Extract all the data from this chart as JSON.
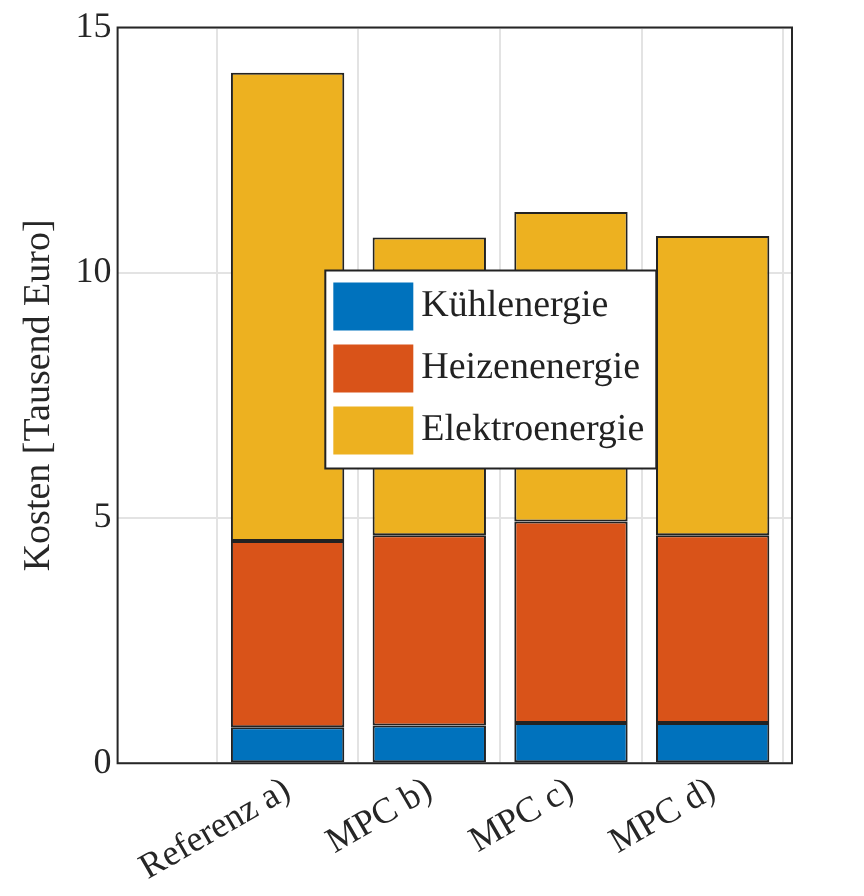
{
  "chart_data": {
    "type": "bar",
    "stacked": true,
    "ylabel": "Kosten [Tausend Euro]",
    "categories": [
      "Referenz a)",
      "MPC b)",
      "MPC c)",
      "MPC d)"
    ],
    "series": [
      {
        "name": "Kühlenergie",
        "color": "#0072bd",
        "values": [
          0.73,
          0.77,
          0.82,
          0.82
        ]
      },
      {
        "name": "Heizenenergie",
        "color": "#d95319",
        "values": [
          3.8,
          3.88,
          4.11,
          3.83
        ]
      },
      {
        "name": "Elektroenergie",
        "color": "#edb120",
        "values": [
          9.55,
          6.07,
          6.31,
          6.1
        ]
      }
    ],
    "ylim": [
      0,
      15
    ],
    "yticks": [
      0,
      5,
      10,
      15
    ],
    "grid": true,
    "legend": "center"
  }
}
